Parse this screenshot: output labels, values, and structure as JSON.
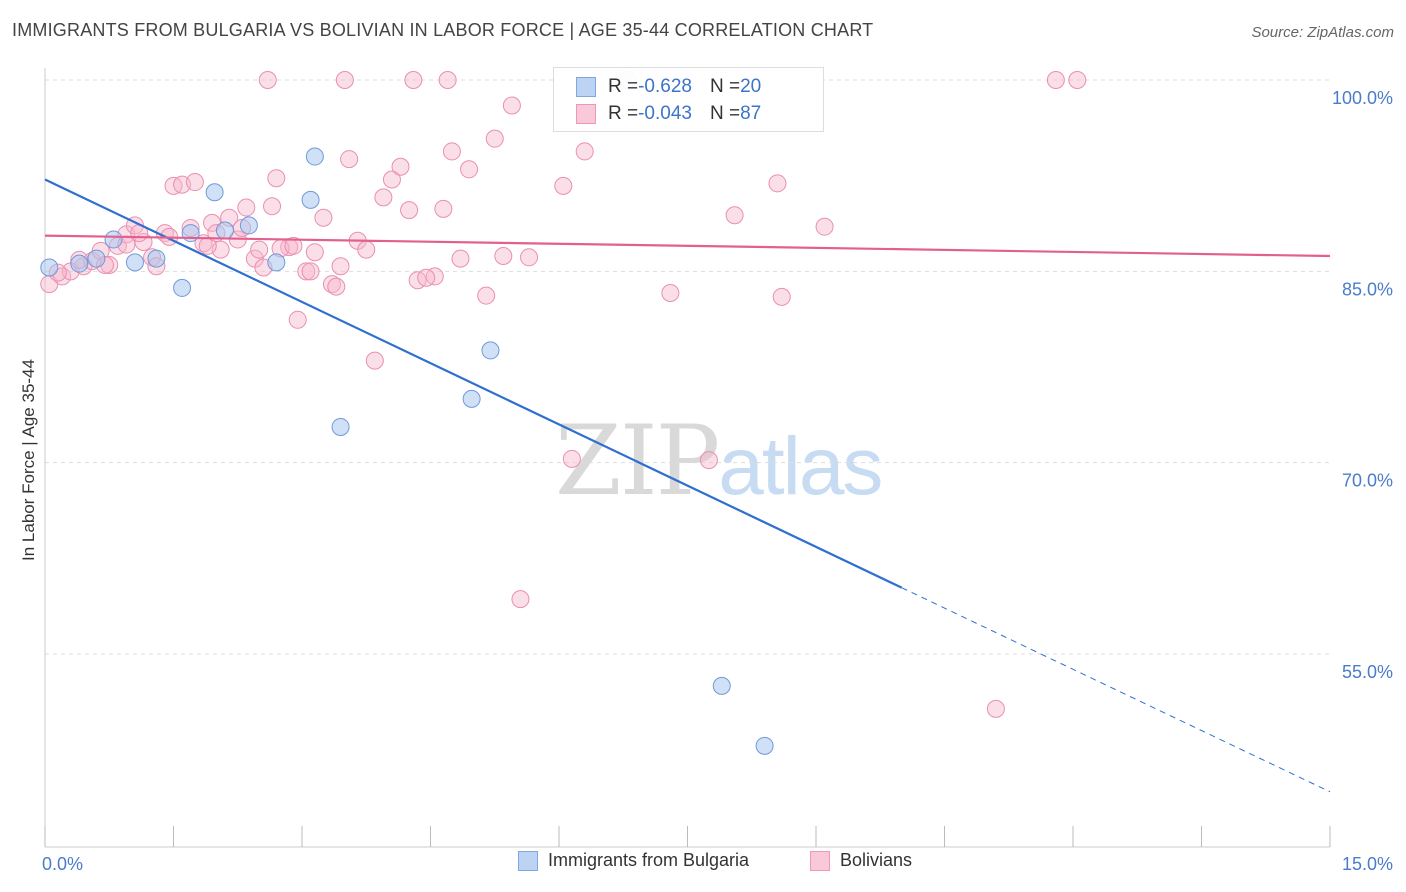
{
  "title": "IMMIGRANTS FROM BULGARIA VS BOLIVIAN IN LABOR FORCE | AGE 35-44 CORRELATION CHART",
  "source": "Source: ZipAtlas.com",
  "watermark": {
    "zip": "ZIP",
    "atlas": "atlas"
  },
  "stats": {
    "bulgaria": {
      "r_label": "R = ",
      "r_value": "-0.628",
      "n_label": "N = ",
      "n_value": "20"
    },
    "bolivians": {
      "r_label": "R = ",
      "r_value": "-0.043",
      "n_label": "N = ",
      "n_value": "87"
    }
  },
  "legend": {
    "bulgaria": "Immigrants from Bulgaria",
    "bolivians": "Bolivians"
  },
  "colors": {
    "blue_fill": "#a9c6ef",
    "blue_line": "#2e6fcf",
    "pink_fill": "#f6b8cd",
    "pink_line": "#e2608f",
    "axis_label": "#4a7cc9"
  },
  "chart_data": {
    "type": "scatter",
    "ylabel": "In Labor Force | Age 35-44",
    "xlim": [
      0,
      15
    ],
    "ylim": [
      40,
      100
    ],
    "x_ticks": [
      {
        "value": 0,
        "label": "0.0%"
      },
      {
        "value": 15,
        "label": "15.0%"
      }
    ],
    "y_ticks": [
      {
        "value": 100,
        "label": "100.0%"
      },
      {
        "value": 85,
        "label": "85.0%"
      },
      {
        "value": 70,
        "label": "70.0%"
      },
      {
        "value": 55,
        "label": "55.0%"
      }
    ],
    "series": [
      {
        "name": "Immigrants from Bulgaria",
        "color": "#a9c6ef",
        "points": [
          [
            0.05,
            85.3
          ],
          [
            0.4,
            85.6
          ],
          [
            0.6,
            86.0
          ],
          [
            0.8,
            87.5
          ],
          [
            1.05,
            85.7
          ],
          [
            1.3,
            86.0
          ],
          [
            1.6,
            83.7
          ],
          [
            1.7,
            88.0
          ],
          [
            1.98,
            91.2
          ],
          [
            2.38,
            88.6
          ],
          [
            2.7,
            85.7
          ],
          [
            3.1,
            90.6
          ],
          [
            3.15,
            94.0
          ],
          [
            3.45,
            72.8
          ],
          [
            4.98,
            75.0
          ],
          [
            5.2,
            78.8
          ],
          [
            7.9,
            52.5
          ],
          [
            8.4,
            47.8
          ],
          [
            6.8,
            100.0
          ],
          [
            2.1,
            88.2
          ]
        ],
        "trend": {
          "x0": 0,
          "y0": 92.2,
          "x1": 10.0,
          "y1": 60.2,
          "dash_to_x": 15.0,
          "dash_to_y": 44.2
        }
      },
      {
        "name": "Bolivians",
        "color": "#f6b8cd",
        "points": [
          [
            0.05,
            84.0
          ],
          [
            0.2,
            84.6
          ],
          [
            0.3,
            85.0
          ],
          [
            0.45,
            85.4
          ],
          [
            0.55,
            85.8
          ],
          [
            0.65,
            86.6
          ],
          [
            0.75,
            85.5
          ],
          [
            0.85,
            87.0
          ],
          [
            0.95,
            87.9
          ],
          [
            1.05,
            88.6
          ],
          [
            1.15,
            87.3
          ],
          [
            1.25,
            86.1
          ],
          [
            1.3,
            85.4
          ],
          [
            1.4,
            88.0
          ],
          [
            1.5,
            91.7
          ],
          [
            1.6,
            91.8
          ],
          [
            1.7,
            88.4
          ],
          [
            1.75,
            92.0
          ],
          [
            1.85,
            87.2
          ],
          [
            1.95,
            88.8
          ],
          [
            2.05,
            86.7
          ],
          [
            2.15,
            89.2
          ],
          [
            2.25,
            87.5
          ],
          [
            2.35,
            90.0
          ],
          [
            2.45,
            86.0
          ],
          [
            2.55,
            85.3
          ],
          [
            2.65,
            90.1
          ],
          [
            2.7,
            92.3
          ],
          [
            2.85,
            86.9
          ],
          [
            2.95,
            81.2
          ],
          [
            3.05,
            85.0
          ],
          [
            3.15,
            86.5
          ],
          [
            3.25,
            89.2
          ],
          [
            3.35,
            84.0
          ],
          [
            3.45,
            85.4
          ],
          [
            3.55,
            93.8
          ],
          [
            3.65,
            87.4
          ],
          [
            3.75,
            86.7
          ],
          [
            3.85,
            78.0
          ],
          [
            3.95,
            90.8
          ],
          [
            4.05,
            92.2
          ],
          [
            4.15,
            93.2
          ],
          [
            4.25,
            89.8
          ],
          [
            4.35,
            84.3
          ],
          [
            4.55,
            84.6
          ],
          [
            4.65,
            89.9
          ],
          [
            4.75,
            94.4
          ],
          [
            4.85,
            86.0
          ],
          [
            4.95,
            93.0
          ],
          [
            5.15,
            83.1
          ],
          [
            5.25,
            95.4
          ],
          [
            5.35,
            86.2
          ],
          [
            5.45,
            98.0
          ],
          [
            5.55,
            59.3
          ],
          [
            5.65,
            86.1
          ],
          [
            6.05,
            91.7
          ],
          [
            6.15,
            70.3
          ],
          [
            6.3,
            94.4
          ],
          [
            6.75,
            100.0
          ],
          [
            7.3,
            83.3
          ],
          [
            7.75,
            70.2
          ],
          [
            8.05,
            89.4
          ],
          [
            8.55,
            91.9
          ],
          [
            8.6,
            83.0
          ],
          [
            9.1,
            88.5
          ],
          [
            11.1,
            50.7
          ],
          [
            11.8,
            100.0
          ],
          [
            12.05,
            100.0
          ],
          [
            2.6,
            100.0
          ],
          [
            3.5,
            100.0
          ],
          [
            4.3,
            100.0
          ],
          [
            4.7,
            100.0
          ],
          [
            0.4,
            85.9
          ],
          [
            0.7,
            85.5
          ],
          [
            1.1,
            88.0
          ],
          [
            1.9,
            87.0
          ],
          [
            2.3,
            88.4
          ],
          [
            2.5,
            86.7
          ],
          [
            2.75,
            86.8
          ],
          [
            3.4,
            83.8
          ],
          [
            4.45,
            84.5
          ],
          [
            0.15,
            84.9
          ],
          [
            0.95,
            87.1
          ],
          [
            1.45,
            87.7
          ],
          [
            2.0,
            88.0
          ],
          [
            2.9,
            87.0
          ],
          [
            3.1,
            85.0
          ]
        ],
        "trend": {
          "x0": 0,
          "y0": 87.8,
          "x1": 15.0,
          "y1": 86.2
        }
      }
    ],
    "grid": true,
    "legend_placement": "bottom"
  }
}
